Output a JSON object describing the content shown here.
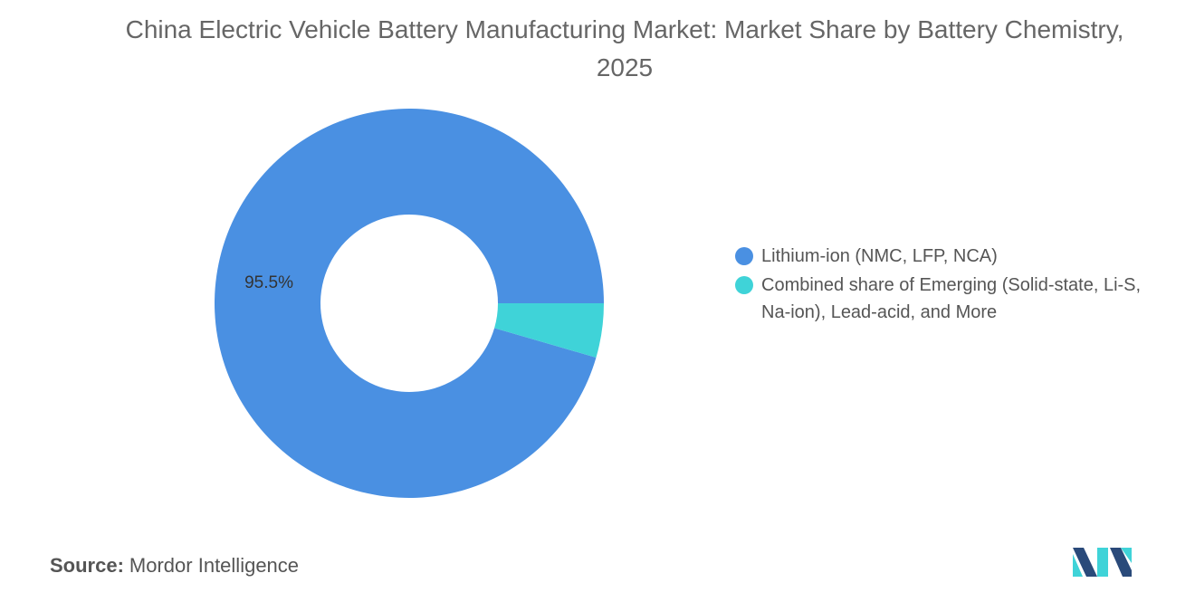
{
  "chart_data": {
    "type": "donut",
    "title": "China Electric Vehicle Battery Manufacturing Market: Market Share by Battery Chemistry, 2025",
    "categories": [
      "Lithium-ion (NMC, LFP, NCA)",
      "Combined share of Emerging (Solid-state, Li-S, Na-ion), Lead-acid, and More"
    ],
    "values": [
      95.5,
      4.5
    ],
    "value_labels": [
      "95.5%",
      null
    ],
    "colors": [
      "#4a90e2",
      "#3fd3d8"
    ],
    "legend": "right",
    "source_label": "Source:",
    "source": "Mordor Intelligence"
  }
}
